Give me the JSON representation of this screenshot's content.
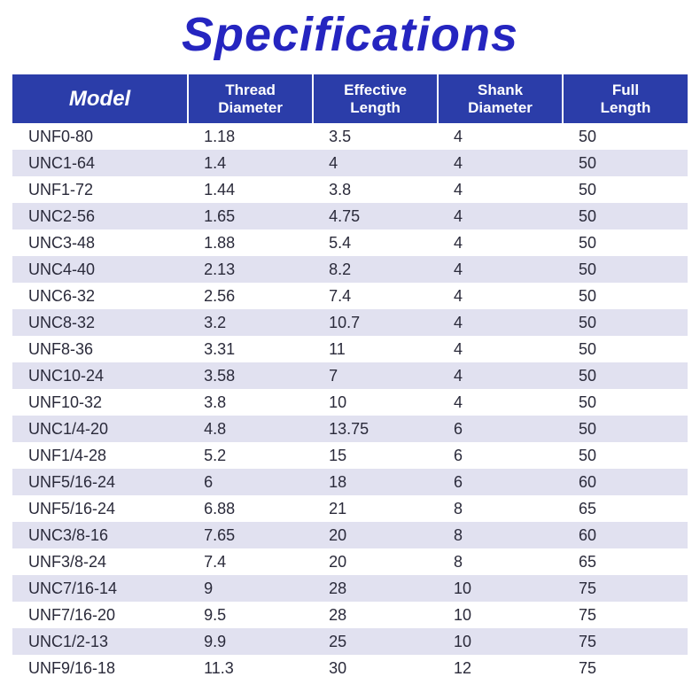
{
  "title": "Specifications",
  "table": {
    "type": "table",
    "header_bg": "#2b3da9",
    "header_fg": "#ffffff",
    "stripe_even": "#e1e1f0",
    "stripe_odd": "#ffffff",
    "text_color": "#2a2a3a",
    "columns": [
      {
        "key": "model",
        "label": "Model",
        "width_pct": 26
      },
      {
        "key": "thread",
        "label": "Thread\nDiameter",
        "width_pct": 18.5
      },
      {
        "key": "eff",
        "label": "Effective\nLength",
        "width_pct": 18.5
      },
      {
        "key": "shank",
        "label": "Shank\nDiameter",
        "width_pct": 18.5
      },
      {
        "key": "full",
        "label": "Full\nLength",
        "width_pct": 18.5
      }
    ],
    "rows": [
      {
        "model": "UNF0-80",
        "thread": "1.18",
        "eff": "3.5",
        "shank": "4",
        "full": "50"
      },
      {
        "model": "UNC1-64",
        "thread": "1.4",
        "eff": "4",
        "shank": "4",
        "full": "50"
      },
      {
        "model": "UNF1-72",
        "thread": "1.44",
        "eff": "3.8",
        "shank": "4",
        "full": "50"
      },
      {
        "model": "UNC2-56",
        "thread": "1.65",
        "eff": "4.75",
        "shank": "4",
        "full": "50"
      },
      {
        "model": "UNC3-48",
        "thread": "1.88",
        "eff": "5.4",
        "shank": "4",
        "full": "50"
      },
      {
        "model": "UNC4-40",
        "thread": "2.13",
        "eff": "8.2",
        "shank": "4",
        "full": "50"
      },
      {
        "model": "UNC6-32",
        "thread": "2.56",
        "eff": "7.4",
        "shank": "4",
        "full": "50"
      },
      {
        "model": "UNC8-32",
        "thread": "3.2",
        "eff": "10.7",
        "shank": "4",
        "full": "50"
      },
      {
        "model": "UNF8-36",
        "thread": "3.31",
        "eff": "11",
        "shank": "4",
        "full": "50"
      },
      {
        "model": "UNC10-24",
        "thread": "3.58",
        "eff": "7",
        "shank": "4",
        "full": "50"
      },
      {
        "model": "UNF10-32",
        "thread": "3.8",
        "eff": "10",
        "shank": "4",
        "full": "50"
      },
      {
        "model": "UNC1/4-20",
        "thread": "4.8",
        "eff": "13.75",
        "shank": "6",
        "full": "50"
      },
      {
        "model": "UNF1/4-28",
        "thread": "5.2",
        "eff": "15",
        "shank": "6",
        "full": "50"
      },
      {
        "model": "UNF5/16-24",
        "thread": "6",
        "eff": "18",
        "shank": "6",
        "full": "60"
      },
      {
        "model": "UNF5/16-24",
        "thread": "6.88",
        "eff": "21",
        "shank": "8",
        "full": "65"
      },
      {
        "model": "UNC3/8-16",
        "thread": "7.65",
        "eff": "20",
        "shank": "8",
        "full": "60"
      },
      {
        "model": "UNF3/8-24",
        "thread": "7.4",
        "eff": "20",
        "shank": "8",
        "full": "65"
      },
      {
        "model": "UNC7/16-14",
        "thread": "9",
        "eff": "28",
        "shank": "10",
        "full": "75"
      },
      {
        "model": "UNF7/16-20",
        "thread": "9.5",
        "eff": "28",
        "shank": "10",
        "full": "75"
      },
      {
        "model": "UNC1/2-13",
        "thread": "9.9",
        "eff": "25",
        "shank": "10",
        "full": "75"
      },
      {
        "model": "UNF9/16-18",
        "thread": "11.3",
        "eff": "30",
        "shank": "12",
        "full": "75"
      }
    ]
  }
}
